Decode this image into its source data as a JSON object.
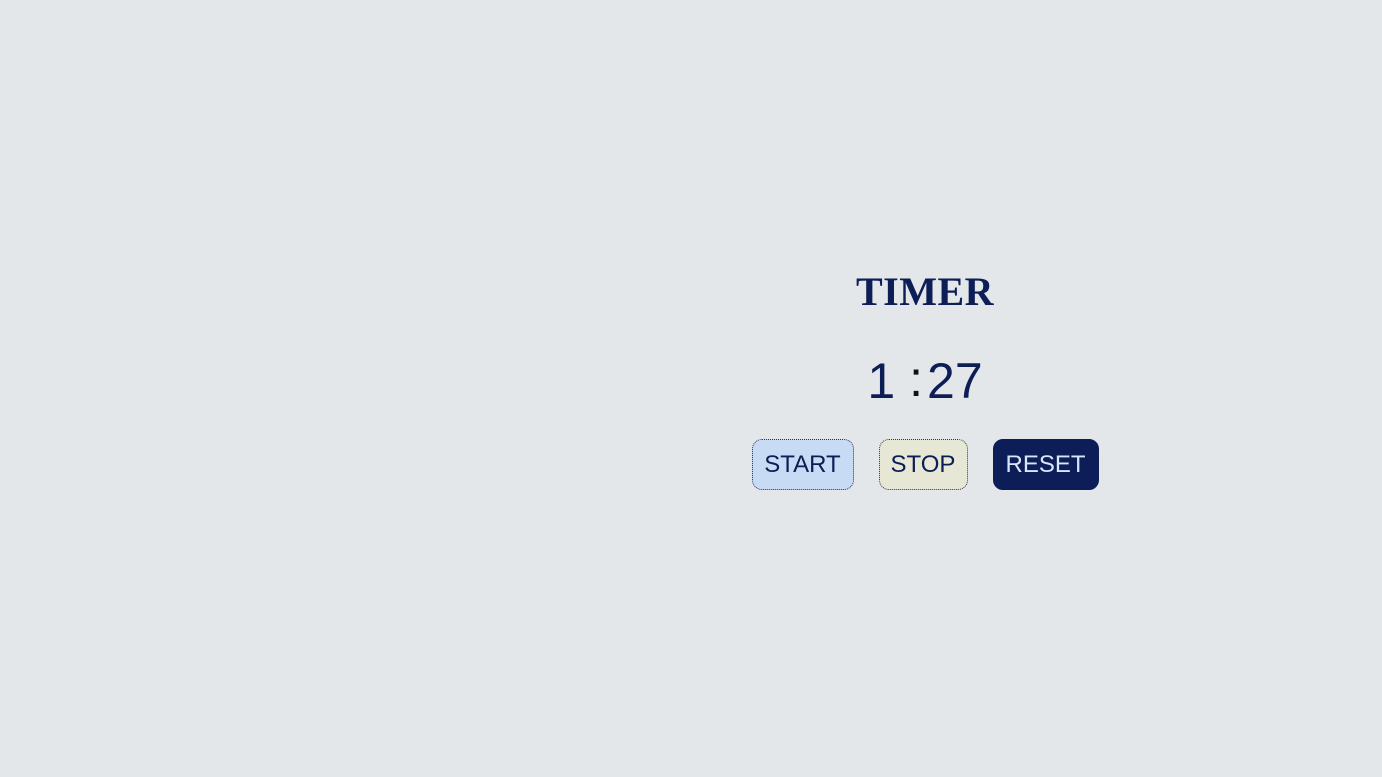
{
  "timer": {
    "title": "TIMER",
    "minutes": "1",
    "separator": ":",
    "seconds": "27"
  },
  "buttons": {
    "start_label": "START",
    "stop_label": "STOP",
    "reset_label": "RESET"
  },
  "colors": {
    "background": "#e3e7ea",
    "text_primary": "#0d1d55",
    "start_bg": "#c8dbf4",
    "stop_bg": "#e7e7d6",
    "reset_bg": "#0c1d57",
    "reset_text": "#d8e6fa"
  }
}
